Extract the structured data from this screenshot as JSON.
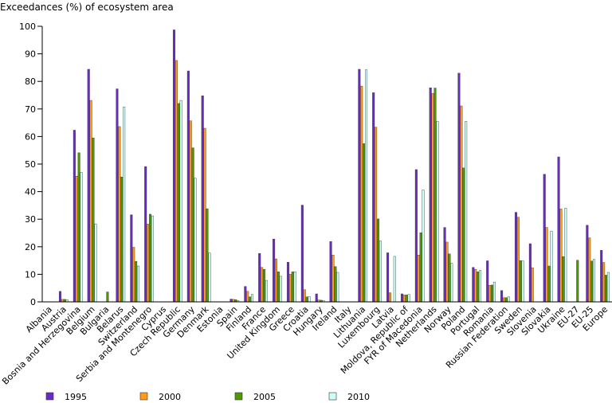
{
  "chart_data": {
    "type": "bar",
    "ylabel": "Exceedances (%) of ecosystem area",
    "ylim": [
      0,
      100
    ],
    "yticks": [
      0,
      10,
      20,
      30,
      40,
      50,
      60,
      70,
      80,
      90,
      100
    ],
    "grid": false,
    "legend_position": "bottom",
    "categories": [
      "Albania",
      "Austria",
      "Bosnia and Herzegovina",
      "Belgium",
      "Bulgaria",
      "Belarus",
      "Switzerland",
      "Serbia and Montenegro",
      "Cyprus",
      "Czech Republic",
      "Germany",
      "Denmark",
      "Estonia",
      "Spain",
      "Finland",
      "France",
      "United Kingdom",
      "Greece",
      "Croatia",
      "Hungary",
      "Ireland",
      "Italy",
      "Lithuania",
      "Luxembourg",
      "Latvia",
      "Moldova, Republic of",
      "FYR of Macedonia",
      "Netherlands",
      "Norway",
      "Poland",
      "Portugal",
      "Romania",
      "Russian Federation",
      "Sweden",
      "Slovenia",
      "Slovakia",
      "Ukraine",
      "EU-27",
      "EU-25",
      "Europe"
    ],
    "series": [
      {
        "name": "1995",
        "color": "#6a2bc4",
        "values": [
          0,
          3.8,
          62.3,
          84.4,
          0,
          77.3,
          31.6,
          49.1,
          0,
          98.7,
          83.8,
          74.8,
          0,
          1.0,
          5.6,
          17.6,
          22.8,
          14.4,
          35.1,
          2.9,
          21.9,
          0,
          84.4,
          75.9,
          17.8,
          2.9,
          48.0,
          77.7,
          27.0,
          83.0,
          12.5,
          14.9,
          4.1,
          32.5,
          21.1,
          46.3,
          52.6,
          0,
          27.8,
          18.7
        ]
      },
      {
        "name": "2000",
        "color": "#ff9a1a",
        "values": [
          0,
          0.9,
          45.6,
          73.1,
          0,
          63.6,
          19.8,
          28.2,
          0,
          87.6,
          65.7,
          63.0,
          0,
          0.9,
          3.8,
          12.5,
          15.6,
          10.0,
          4.4,
          0.7,
          17.0,
          0,
          78.3,
          63.4,
          3.3,
          2.5,
          17.0,
          75.6,
          21.7,
          71.1,
          11.8,
          6.0,
          1.5,
          30.7,
          12.4,
          27.0,
          33.7,
          0,
          23.2,
          14.3
        ]
      },
      {
        "name": "2005",
        "color": "#4c9900",
        "values": [
          0,
          0.9,
          54.1,
          59.5,
          3.6,
          45.3,
          14.7,
          31.8,
          0,
          72.0,
          55.9,
          33.8,
          0,
          0.8,
          1.8,
          11.8,
          10.9,
          10.9,
          1.8,
          0.6,
          12.8,
          0,
          57.4,
          30.1,
          0,
          2.5,
          25.1,
          77.6,
          17.4,
          48.6,
          10.9,
          6.1,
          1.5,
          15.0,
          0,
          13.0,
          16.4,
          15.1,
          14.8,
          9.7
        ]
      },
      {
        "name": "2010",
        "color": "#c9fff5",
        "values": [
          0,
          0.8,
          47.0,
          28.3,
          0,
          70.7,
          13.0,
          31.2,
          0,
          73.1,
          44.9,
          17.7,
          0,
          0.5,
          2.7,
          7.8,
          9.3,
          10.9,
          1.9,
          0.5,
          10.7,
          0,
          84.2,
          22.1,
          16.5,
          2.7,
          40.6,
          65.5,
          14.0,
          65.5,
          11.4,
          7.2,
          1.8,
          14.8,
          0,
          25.7,
          34.0,
          0,
          15.4,
          10.7
        ]
      }
    ]
  }
}
